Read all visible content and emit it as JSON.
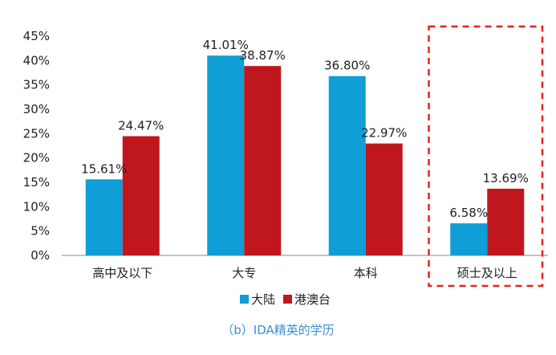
{
  "chart_data": {
    "type": "bar",
    "categories": [
      "高中及以下",
      "大专",
      "本科",
      "硕士及以上"
    ],
    "series": [
      {
        "name": "大陆",
        "color": "#0f9ed5",
        "values": [
          15.61,
          41.01,
          36.8,
          6.58
        ],
        "labels": [
          "15.61%",
          "41.01%",
          "36.80%",
          "6.58%"
        ]
      },
      {
        "name": "港澳台",
        "color": "#c0171f",
        "values": [
          24.47,
          38.87,
          22.97,
          13.69
        ],
        "labels": [
          "24.47%",
          "38.87%",
          "22.97%",
          "13.69%"
        ]
      }
    ],
    "yticks": [
      "0%",
      "5%",
      "10%",
      "15%",
      "20%",
      "25%",
      "30%",
      "35%",
      "40%",
      "45%"
    ],
    "ylim": [
      0,
      45
    ],
    "highlight_category": "硕士及以上",
    "highlight_color": "#e8231c",
    "legend_position": "bottom"
  },
  "caption": "（b）IDA精英的学历"
}
